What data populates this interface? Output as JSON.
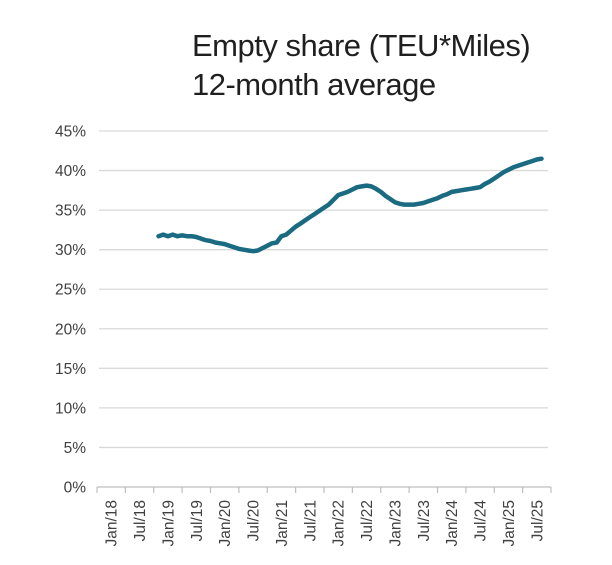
{
  "title": {
    "line1": "Empty share (TEU*Miles)",
    "line2": "12-month average"
  },
  "chart_data": {
    "type": "line",
    "title": "Empty share (TEU*Miles) 12-month average",
    "xlabel": "",
    "ylabel": "",
    "unit": "%",
    "grid": true,
    "legend": false,
    "colors": {
      "line": "#1a6b82",
      "gridline": "#d9d9d9",
      "axis": "#bfbfbf",
      "tick_text": "#404040",
      "title_text": "#1f1f1f"
    },
    "y_axis": {
      "min": 0,
      "max": 45,
      "tick_values": [
        0,
        5,
        10,
        15,
        20,
        25,
        30,
        35,
        40,
        45
      ],
      "tick_labels": [
        "0%",
        "5%",
        "10%",
        "15%",
        "20%",
        "25%",
        "30%",
        "35%",
        "40%",
        "45%"
      ]
    },
    "x_axis": {
      "tick_labels": [
        "Jan/18",
        "Jul/18",
        "Jan/19",
        "Jul/19",
        "Jan/20",
        "Jul/20",
        "Jan/21",
        "Jul/21",
        "Jan/22",
        "Jul/22",
        "Jan/23",
        "Jul/23",
        "Jan/24",
        "Jul/24",
        "Jan/25",
        "Jul/25"
      ],
      "tick_month_indices": [
        0,
        6,
        12,
        18,
        24,
        30,
        36,
        42,
        48,
        54,
        60,
        66,
        72,
        78,
        84,
        90
      ],
      "months_total": 96
    },
    "series": [
      {
        "name": "Empty share (TEU*Miles), 12-month average",
        "start_month_label": "Nov/18",
        "start_month_index": 10,
        "color": "#1a6b82",
        "months": [
          "Nov/18",
          "Dec/18",
          "Jan/19",
          "Feb/19",
          "Mar/19",
          "Apr/19",
          "May/19",
          "Jun/19",
          "Jul/19",
          "Aug/19",
          "Sep/19",
          "Oct/19",
          "Nov/19",
          "Dec/19",
          "Jan/20",
          "Feb/20",
          "Mar/20",
          "Apr/20",
          "May/20",
          "Jun/20",
          "Jul/20",
          "Aug/20",
          "Sep/20",
          "Oct/20",
          "Nov/20",
          "Dec/20",
          "Jan/21",
          "Feb/21",
          "Mar/21",
          "Apr/21",
          "May/21",
          "Jun/21",
          "Jul/21",
          "Aug/21",
          "Sep/21",
          "Oct/21",
          "Nov/21",
          "Dec/21",
          "Jan/22",
          "Feb/22",
          "Mar/22",
          "Apr/22",
          "May/22",
          "Jun/22",
          "Jul/22",
          "Aug/22",
          "Sep/22",
          "Oct/22",
          "Nov/22",
          "Dec/22",
          "Jan/23",
          "Feb/23",
          "Mar/23",
          "Apr/23",
          "May/23",
          "Jun/23",
          "Jul/23",
          "Aug/23",
          "Sep/23",
          "Oct/23",
          "Nov/23",
          "Dec/23",
          "Jan/24",
          "Feb/24",
          "Mar/24",
          "Apr/24",
          "May/24",
          "Jun/24",
          "Jul/24",
          "Aug/24",
          "Sep/24",
          "Oct/24",
          "Nov/24",
          "Dec/24",
          "Jan/25",
          "Feb/25",
          "Mar/25",
          "Apr/25",
          "May/25",
          "Jun/25",
          "Jul/25",
          "Aug/25"
        ],
        "values": [
          31.7,
          31.9,
          31.7,
          31.9,
          31.7,
          31.8,
          31.7,
          31.7,
          31.6,
          31.4,
          31.2,
          31.1,
          30.9,
          30.8,
          30.7,
          30.5,
          30.3,
          30.1,
          30.0,
          29.9,
          29.8,
          29.9,
          30.2,
          30.5,
          30.8,
          30.9,
          31.7,
          31.9,
          32.4,
          32.9,
          33.3,
          33.7,
          34.1,
          34.5,
          34.9,
          35.3,
          35.7,
          36.3,
          36.9,
          37.1,
          37.3,
          37.6,
          37.9,
          38.0,
          38.1,
          38.0,
          37.7,
          37.3,
          36.8,
          36.4,
          36.0,
          35.8,
          35.7,
          35.7,
          35.7,
          35.8,
          35.9,
          36.1,
          36.3,
          36.5,
          36.8,
          37.0,
          37.3,
          37.4,
          37.5,
          37.6,
          37.7,
          37.8,
          37.9,
          38.3,
          38.6,
          39.0,
          39.4,
          39.8,
          40.1,
          40.4,
          40.6,
          40.8,
          41.0,
          41.2,
          41.4,
          41.5
        ]
      }
    ]
  }
}
